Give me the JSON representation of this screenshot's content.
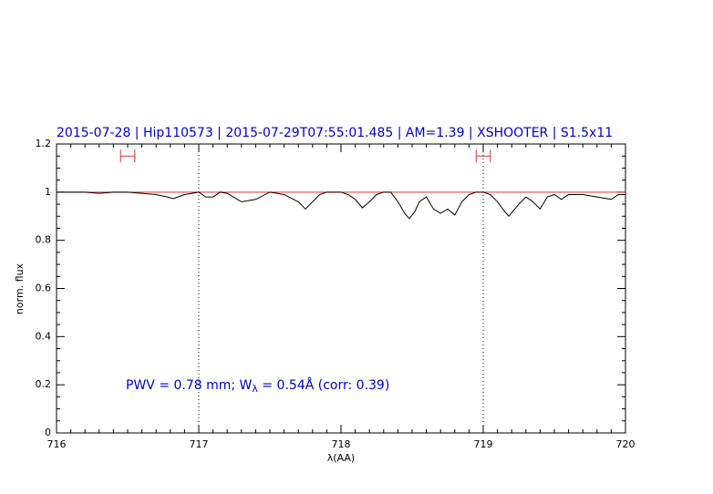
{
  "chart_data": {
    "type": "line",
    "title": "2015-07-28 | Hip110573 | 2015-07-29T07:55:01.485 | AM=1.39 | XSHOOTER | S1.5x11",
    "annotation": [
      "PWV = 0.78 mm; W",
      "λ",
      " = 0.54Å (corr: 0.39)"
    ],
    "xlabel": "λ(AA)",
    "ylabel": "norm. flux",
    "xlim": [
      716,
      720
    ],
    "ylim": [
      0,
      1.2
    ],
    "xticks": [
      716,
      717,
      718,
      719,
      720
    ],
    "yticks": [
      0,
      0.2,
      0.4,
      0.6,
      0.8,
      1,
      1.2
    ],
    "vlines": [
      717,
      719
    ],
    "continuum": {
      "value": 1,
      "color": "#e03030"
    },
    "ranges": [
      {
        "x": [
          716.45,
          716.55
        ],
        "y": 1.15
      },
      {
        "x": [
          718.95,
          719.05
        ],
        "y": 1.15
      }
    ],
    "range_color": "#e03030",
    "series": [
      {
        "color": "#000000",
        "x": [
          716.0,
          716.1,
          716.2,
          716.3,
          716.4,
          716.5,
          716.6,
          716.7,
          716.78,
          716.82,
          716.9,
          717.0,
          717.05,
          717.1,
          717.15,
          717.2,
          717.3,
          717.4,
          717.5,
          717.55,
          717.6,
          717.7,
          717.75,
          717.8,
          717.85,
          717.9,
          718.0,
          718.05,
          718.1,
          718.15,
          718.2,
          718.25,
          718.3,
          718.35,
          718.4,
          718.45,
          718.48,
          718.52,
          718.55,
          718.6,
          718.65,
          718.7,
          718.75,
          718.8,
          718.85,
          718.9,
          718.95,
          719.0,
          719.05,
          719.1,
          719.15,
          719.18,
          719.25,
          719.3,
          719.35,
          719.4,
          719.45,
          719.5,
          719.55,
          719.6,
          719.7,
          719.8,
          719.9,
          719.95,
          720.0
        ],
        "values": [
          1.0,
          1.0,
          1.0,
          0.995,
          1.0,
          1.0,
          0.995,
          0.99,
          0.98,
          0.973,
          0.99,
          1.0,
          0.98,
          0.98,
          1.0,
          0.995,
          0.96,
          0.97,
          1.0,
          0.995,
          0.99,
          0.96,
          0.93,
          0.96,
          0.99,
          1.0,
          1.0,
          0.99,
          0.97,
          0.935,
          0.96,
          0.99,
          1.0,
          1.0,
          0.96,
          0.91,
          0.89,
          0.92,
          0.96,
          0.98,
          0.93,
          0.912,
          0.93,
          0.905,
          0.96,
          0.99,
          1.0,
          1.0,
          0.99,
          0.96,
          0.92,
          0.9,
          0.95,
          0.98,
          0.96,
          0.93,
          0.98,
          0.99,
          0.97,
          0.99,
          0.99,
          0.98,
          0.97,
          0.99,
          0.99
        ]
      }
    ]
  }
}
